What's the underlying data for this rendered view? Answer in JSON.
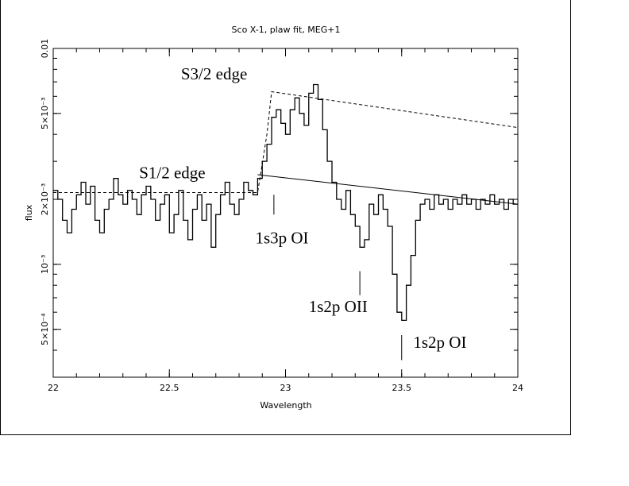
{
  "chart_data": {
    "type": "line",
    "title": "Sco X-1, plaw fit, MEG+1",
    "xlabel": "Wavelength",
    "ylabel": "flux",
    "xlim": [
      22,
      24
    ],
    "ylim": [
      0.0003,
      0.01
    ],
    "yscale": "log",
    "grid": false,
    "x_ticks": [
      {
        "value": 22,
        "label": "22"
      },
      {
        "value": 22.5,
        "label": "22.5"
      },
      {
        "value": 23,
        "label": "23"
      },
      {
        "value": 23.5,
        "label": "23.5"
      },
      {
        "value": 24,
        "label": "24"
      }
    ],
    "y_ticks": [
      {
        "value": 0.0005,
        "label": "5×10⁻⁴"
      },
      {
        "value": 0.001,
        "label": "10⁻³"
      },
      {
        "value": 0.002,
        "label": "2×10⁻³"
      },
      {
        "value": 0.005,
        "label": "5×10⁻³"
      },
      {
        "value": 0.01,
        "label": "0.01"
      }
    ],
    "series": [
      {
        "style": "histogram",
        "x": [
          22.0,
          22.02,
          22.04,
          22.06,
          22.08,
          22.1,
          22.12,
          22.14,
          22.16,
          22.18,
          22.2,
          22.22,
          22.24,
          22.26,
          22.28,
          22.3,
          22.32,
          22.34,
          22.36,
          22.38,
          22.4,
          22.42,
          22.44,
          22.46,
          22.48,
          22.5,
          22.52,
          22.54,
          22.56,
          22.58,
          22.6,
          22.62,
          22.64,
          22.66,
          22.68,
          22.7,
          22.72,
          22.74,
          22.76,
          22.78,
          22.8,
          22.82,
          22.84,
          22.86,
          22.88,
          22.9,
          22.92,
          22.94,
          22.96,
          22.98,
          23.0,
          23.02,
          23.04,
          23.06,
          23.08,
          23.1,
          23.12,
          23.14,
          23.16,
          23.18,
          23.2,
          23.22,
          23.24,
          23.26,
          23.28,
          23.3,
          23.32,
          23.34,
          23.36,
          23.38,
          23.4,
          23.42,
          23.44,
          23.46,
          23.48,
          23.5,
          23.52,
          23.54,
          23.56,
          23.58,
          23.6,
          23.62,
          23.64,
          23.66,
          23.68,
          23.7,
          23.72,
          23.74,
          23.76,
          23.78,
          23.8,
          23.82,
          23.84,
          23.86,
          23.88,
          23.9,
          23.92,
          23.94,
          23.96,
          23.98
        ],
        "y": [
          0.0022,
          0.002,
          0.0016,
          0.0014,
          0.0018,
          0.0021,
          0.0024,
          0.0019,
          0.0023,
          0.0016,
          0.0014,
          0.0018,
          0.002,
          0.0025,
          0.0021,
          0.0019,
          0.0022,
          0.002,
          0.0017,
          0.0021,
          0.0023,
          0.002,
          0.0016,
          0.0019,
          0.0021,
          0.0014,
          0.0017,
          0.0022,
          0.0016,
          0.0013,
          0.0018,
          0.0021,
          0.0016,
          0.0019,
          0.0012,
          0.0017,
          0.0021,
          0.0024,
          0.0019,
          0.0017,
          0.002,
          0.0024,
          0.0022,
          0.0021,
          0.0025,
          0.003,
          0.0036,
          0.0048,
          0.0052,
          0.0045,
          0.004,
          0.0052,
          0.0059,
          0.005,
          0.0044,
          0.0062,
          0.0068,
          0.0058,
          0.0042,
          0.003,
          0.0024,
          0.002,
          0.0018,
          0.0022,
          0.0017,
          0.0015,
          0.0012,
          0.0013,
          0.0019,
          0.0017,
          0.0021,
          0.0018,
          0.0015,
          0.0009,
          0.0006,
          0.00055,
          0.0008,
          0.0011,
          0.0016,
          0.0019,
          0.002,
          0.0018,
          0.0021,
          0.0019,
          0.002,
          0.0018,
          0.002,
          0.0019,
          0.0021,
          0.0019,
          0.002,
          0.0018,
          0.002,
          0.0019,
          0.0021,
          0.0019,
          0.002,
          0.0018,
          0.002,
          0.0019
        ]
      },
      {
        "style": "dashed",
        "x": [
          22.0,
          22.88,
          22.92,
          22.94,
          24.0
        ],
        "y": [
          0.00215,
          0.00215,
          0.004,
          0.0063,
          0.0043
        ]
      },
      {
        "style": "solid",
        "x": [
          22.88,
          24.0
        ],
        "y": [
          0.0026,
          0.0019
        ]
      }
    ],
    "annotations": [
      {
        "text": "S3/2 edge",
        "x": 22.55,
        "y": 0.0072
      },
      {
        "text": "S1/2 edge",
        "x": 22.37,
        "y": 0.0025
      },
      {
        "text": "1s3p OI",
        "x": 22.87,
        "y": 0.00125,
        "tick": {
          "x": 22.95,
          "y_top": 0.0021,
          "y_bottom": 0.0017
        }
      },
      {
        "text": "1s2p OII",
        "x": 23.1,
        "y": 0.0006,
        "tick": {
          "x": 23.32,
          "y_top": 0.00093,
          "y_bottom": 0.00072
        }
      },
      {
        "text": "1s2p OI",
        "x": 23.55,
        "y": 0.00041,
        "tick": {
          "x": 23.5,
          "y_top": 0.00047,
          "y_bottom": 0.00036
        }
      }
    ]
  }
}
